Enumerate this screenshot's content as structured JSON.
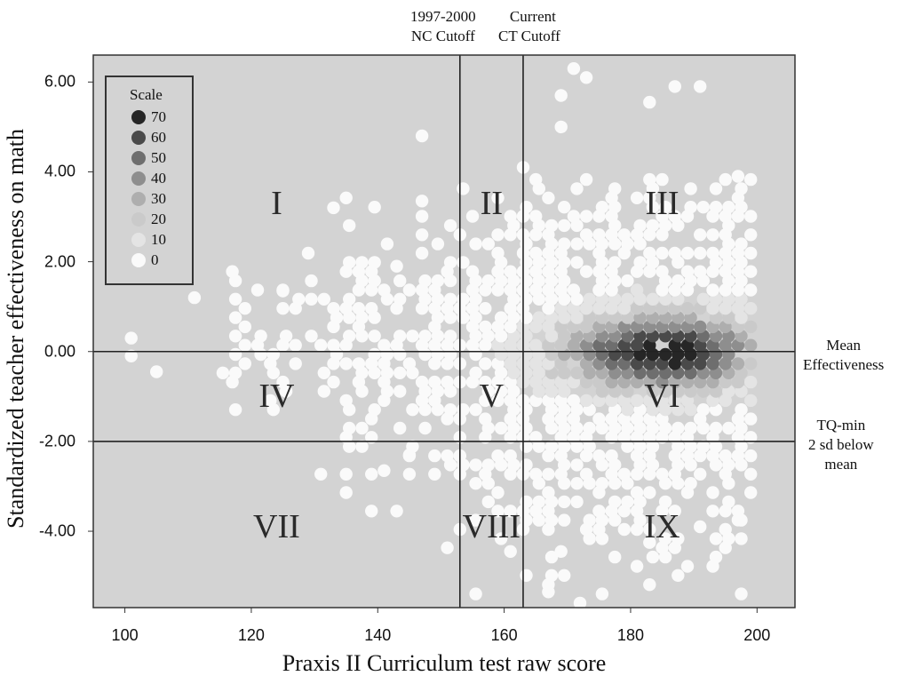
{
  "chart_data": {
    "type": "scatter",
    "subtype": "hexbin density",
    "xlabel": "Praxis II Curriculum test raw score",
    "ylabel": "Standardized teacher effectiveness on math",
    "xlim": [
      95,
      206
    ],
    "ylim": [
      -5.7,
      6.6
    ],
    "x_ticks": [
      "100",
      "120",
      "140",
      "160",
      "180",
      "200"
    ],
    "y_ticks": [
      "6.00",
      "4.00",
      "2.00",
      "0.00",
      "-2.00",
      "-4.00"
    ],
    "grid": false,
    "background_color": "#d3d3d3",
    "vertical_lines": [
      {
        "x": 153,
        "label_lines": [
          "1997-2000",
          "NC Cutoff"
        ]
      },
      {
        "x": 163,
        "label_lines": [
          "Current",
          "CT Cutoff"
        ]
      }
    ],
    "horizontal_lines": [
      {
        "y": 0,
        "label_lines": [
          "Mean",
          "Effectiveness"
        ]
      },
      {
        "y": -2,
        "label_lines": [
          "TQ-min",
          "2 sd below",
          "mean"
        ]
      }
    ],
    "regions": [
      {
        "label": "I",
        "x": 124,
        "y": 3.3
      },
      {
        "label": "II",
        "x": 158,
        "y": 3.3
      },
      {
        "label": "III",
        "x": 185,
        "y": 3.3
      },
      {
        "label": "IV",
        "x": 124,
        "y": -1.0
      },
      {
        "label": "V",
        "x": 158,
        "y": -1.0
      },
      {
        "label": "VI",
        "x": 185,
        "y": -1.0
      },
      {
        "label": "VII",
        "x": 124,
        "y": -3.9
      },
      {
        "label": "VIII",
        "x": 158,
        "y": -3.9
      },
      {
        "label": "IX",
        "x": 185,
        "y": -3.9
      }
    ],
    "legend": {
      "title": "Scale",
      "position": "top-left",
      "items": [
        {
          "label": "70",
          "color": "#262626"
        },
        {
          "label": "60",
          "color": "#4a4a4a"
        },
        {
          "label": "50",
          "color": "#6e6e6e"
        },
        {
          "label": "40",
          "color": "#8e8e8e"
        },
        {
          "label": "30",
          "color": "#aeaeae"
        },
        {
          "label": "20",
          "color": "#cacaca"
        },
        {
          "label": "10",
          "color": "#e4e4e4"
        },
        {
          "label": "0",
          "color": "#fafafa"
        }
      ]
    },
    "density_model": {
      "center_x": 186,
      "center_y": 0.0,
      "peak_count": 72,
      "x_range": [
        101,
        199
      ],
      "note_points": [
        {
          "x": 101,
          "y": 0.3
        },
        {
          "x": 101,
          "y": -0.1
        },
        {
          "x": 105,
          "y": -0.45
        },
        {
          "x": 111,
          "y": 1.2
        },
        {
          "x": 125,
          "y": 1.35
        },
        {
          "x": 133,
          "y": 3.2
        },
        {
          "x": 143,
          "y": 1.9
        },
        {
          "x": 147,
          "y": 3.35
        },
        {
          "x": 147,
          "y": 4.8
        },
        {
          "x": 163,
          "y": 4.1
        },
        {
          "x": 171,
          "y": 6.3
        },
        {
          "x": 173,
          "y": 6.1
        },
        {
          "x": 169,
          "y": 5.7
        },
        {
          "x": 169,
          "y": 5.0
        },
        {
          "x": 183,
          "y": 5.55
        },
        {
          "x": 187,
          "y": 5.9
        },
        {
          "x": 191,
          "y": 5.9
        },
        {
          "x": 197,
          "y": 3.9
        },
        {
          "x": 167,
          "y": -5.35
        },
        {
          "x": 172,
          "y": -5.6
        },
        {
          "x": 169,
          "y": -4.45
        },
        {
          "x": 161,
          "y": -4.45
        },
        {
          "x": 183,
          "y": -4.25
        },
        {
          "x": 191,
          "y": -3.9
        },
        {
          "x": 197,
          "y": -3.75
        },
        {
          "x": 141,
          "y": -2.65
        },
        {
          "x": 145,
          "y": -2.3
        }
      ]
    }
  }
}
